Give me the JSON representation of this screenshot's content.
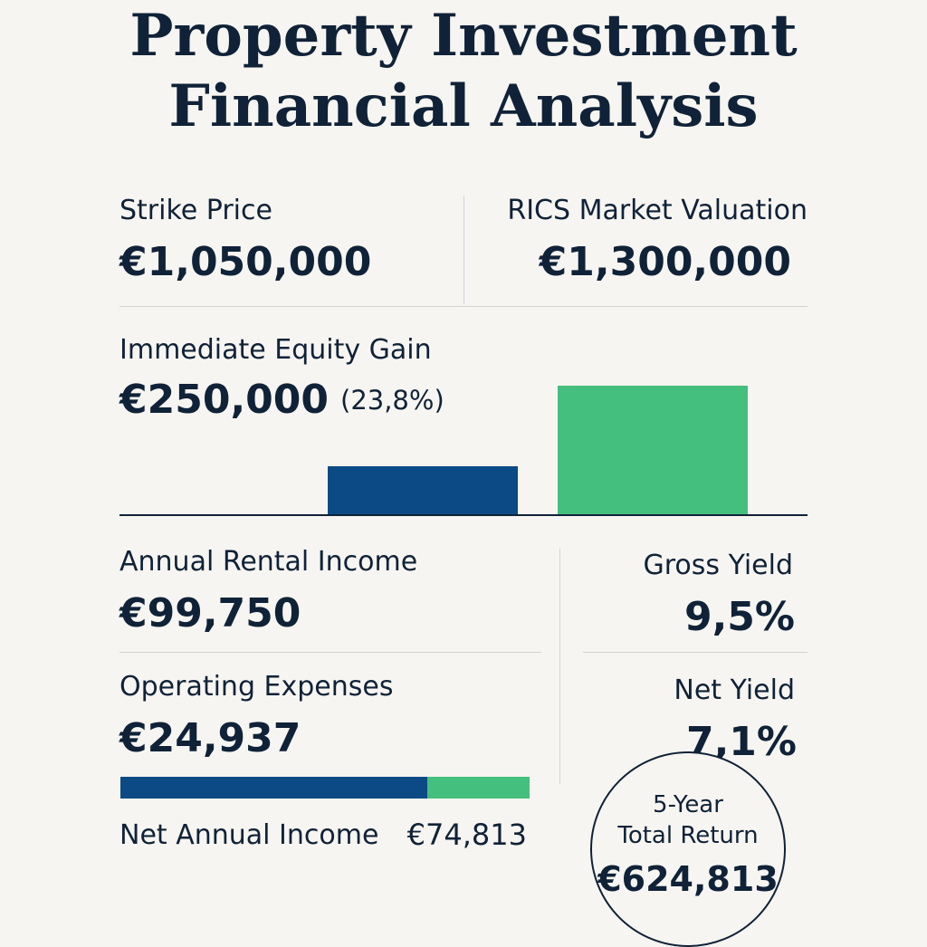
{
  "title": {
    "line1": "Property Investment",
    "line2": "Financial Analysis"
  },
  "strike_price": {
    "label": "Strike Price",
    "value": "€1,050,000"
  },
  "rics_valuation": {
    "label": "RICS Market Valuation",
    "value": "€1,300,000"
  },
  "equity_gain": {
    "label": "Immediate Equity Gain",
    "value": "€250,000",
    "percent": "(23,8%)"
  },
  "chart_data": {
    "type": "bar",
    "categories": [
      "Strike Price",
      "RICS Market Valuation"
    ],
    "values": [
      1050000,
      1300000
    ],
    "colors": [
      "#0b4a85",
      "#45bf7d"
    ],
    "title": "",
    "xlabel": "",
    "ylabel": "",
    "axis_labels_shown": false
  },
  "rental_income": {
    "label": "Annual Rental Income",
    "value": "€99,750"
  },
  "operating_expenses": {
    "label": "Operating Expenses",
    "value": "€24,937"
  },
  "income_split": {
    "net_share": 0.75,
    "expense_share": 0.25,
    "colors": {
      "net": "#0b4a85",
      "expenses": "#45bf7d"
    }
  },
  "net_income": {
    "label": "Net Annual Income",
    "value": "€74,813"
  },
  "gross_yield": {
    "label": "Gross Yield",
    "value": "9,5%"
  },
  "net_yield": {
    "label": "Net Yield",
    "value": "7,1%"
  },
  "total_return": {
    "line1": "5-Year",
    "line2": "Total Return",
    "value": "€624,813"
  }
}
